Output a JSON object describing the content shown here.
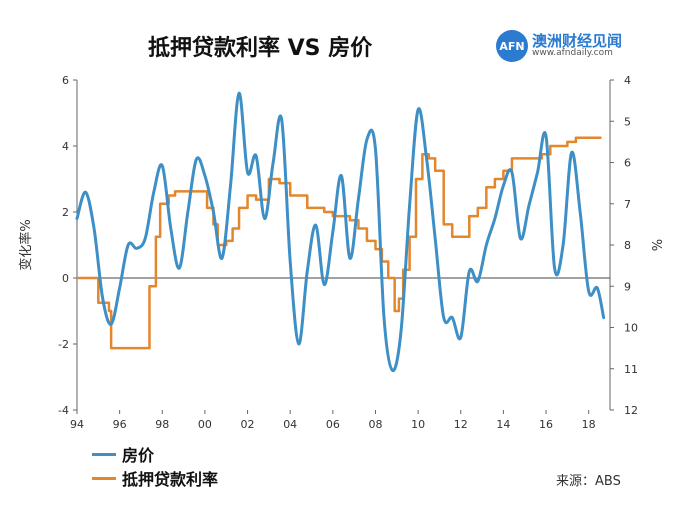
{
  "title": "抵押贷款利率 VS 房价",
  "brand": {
    "logo": "AFN",
    "name": "澳洲财经见闻",
    "url": "www.afndaily.com"
  },
  "source": "来源：ABS",
  "colors": {
    "house": "#3d8fc6",
    "rate": "#e3862c"
  },
  "chart_data": {
    "type": "line",
    "left_axis": {
      "label": "变化率%",
      "range": [
        -4,
        6
      ],
      "ticks": [
        "6",
        "4",
        "2",
        "0",
        "-2",
        "-4"
      ]
    },
    "right_axis": {
      "label": "%",
      "range": [
        12,
        4
      ],
      "inverted": true,
      "ticks": [
        "4",
        "5",
        "6",
        "7",
        "8",
        "9",
        "10",
        "11",
        "12"
      ]
    },
    "x_axis": {
      "range": [
        1994,
        2019
      ],
      "ticks": [
        "94",
        "96",
        "98",
        "00",
        "02",
        "04",
        "06",
        "08",
        "10",
        "12",
        "14",
        "16",
        "18"
      ]
    },
    "legend": [
      "房价",
      "抵押贷款利率"
    ],
    "series": [
      {
        "name": "房价",
        "axis": "left",
        "x": [
          1994,
          1994.4,
          1994.8,
          1995.2,
          1995.6,
          1996.0,
          1996.4,
          1996.8,
          1997.2,
          1997.6,
          1998.0,
          1998.4,
          1998.8,
          1999.2,
          1999.6,
          2000.0,
          2000.4,
          2000.8,
          2001.2,
          2001.6,
          2002.0,
          2002.4,
          2002.8,
          2003.2,
          2003.6,
          2004.0,
          2004.4,
          2004.8,
          2005.2,
          2005.6,
          2006.0,
          2006.4,
          2006.8,
          2007.2,
          2007.6,
          2008.0,
          2008.4,
          2008.8,
          2009.2,
          2009.6,
          2010.0,
          2010.4,
          2010.8,
          2011.2,
          2011.6,
          2012.0,
          2012.4,
          2012.8,
          2013.2,
          2013.6,
          2014.0,
          2014.4,
          2014.8,
          2015.2,
          2015.6,
          2016.0,
          2016.4,
          2016.8,
          2017.2,
          2017.6,
          2018.0,
          2018.4,
          2018.7
        ],
        "y": [
          1.8,
          2.6,
          1.5,
          -0.6,
          -1.4,
          -0.3,
          1.0,
          0.9,
          1.2,
          2.6,
          3.4,
          1.5,
          0.3,
          2.0,
          3.6,
          3.1,
          2.0,
          0.6,
          2.8,
          5.6,
          3.2,
          3.7,
          1.8,
          3.5,
          4.8,
          0.5,
          -2.0,
          0.2,
          1.6,
          -0.2,
          1.4,
          3.1,
          0.6,
          2.4,
          4.2,
          3.9,
          -1.2,
          -2.8,
          -1.6,
          2.2,
          5.1,
          3.6,
          1.2,
          -1.2,
          -1.2,
          -1.8,
          0.2,
          -0.1,
          1.0,
          1.8,
          2.8,
          3.2,
          1.2,
          2.2,
          3.2,
          4.3,
          0.3,
          1.0,
          3.8,
          2.0,
          -0.4,
          -0.3,
          -1.2
        ]
      },
      {
        "name": "抵押贷款利率",
        "axis": "right",
        "x": [
          1994,
          1994.9,
          1995.0,
          1995.5,
          1995.6,
          1997.2,
          1997.4,
          1997.7,
          1997.9,
          1998.3,
          1998.6,
          1999.8,
          1999.9,
          2000.1,
          2000.4,
          2000.6,
          2001.0,
          2001.3,
          2001.6,
          2002.0,
          2002.4,
          2003.0,
          2003.5,
          2004.0,
          2004.8,
          2005.2,
          2005.6,
          2006.0,
          2006.4,
          2006.8,
          2007.2,
          2007.6,
          2008.0,
          2008.3,
          2008.6,
          2008.9,
          2009.1,
          2009.3,
          2009.6,
          2009.9,
          2010.2,
          2010.5,
          2010.8,
          2011.2,
          2011.6,
          2012.0,
          2012.4,
          2012.8,
          2013.2,
          2013.6,
          2014.0,
          2014.4,
          2015.0,
          2015.4,
          2015.8,
          2016.2,
          2016.6,
          2017.0,
          2017.4,
          2018.6
        ],
        "y": [
          8.8,
          8.8,
          9.4,
          9.6,
          10.5,
          10.5,
          9.0,
          7.8,
          7.0,
          6.8,
          6.7,
          6.7,
          6.7,
          7.1,
          7.5,
          8.0,
          7.9,
          7.6,
          7.1,
          6.8,
          6.9,
          6.4,
          6.5,
          6.8,
          7.1,
          7.1,
          7.2,
          7.3,
          7.3,
          7.4,
          7.6,
          7.9,
          8.1,
          8.4,
          8.8,
          9.6,
          9.3,
          8.6,
          7.8,
          6.4,
          5.8,
          5.9,
          6.2,
          7.5,
          7.8,
          7.8,
          7.3,
          7.1,
          6.6,
          6.4,
          6.2,
          5.9,
          5.9,
          5.9,
          5.8,
          5.6,
          5.6,
          5.5,
          5.4,
          5.4
        ]
      }
    ]
  }
}
